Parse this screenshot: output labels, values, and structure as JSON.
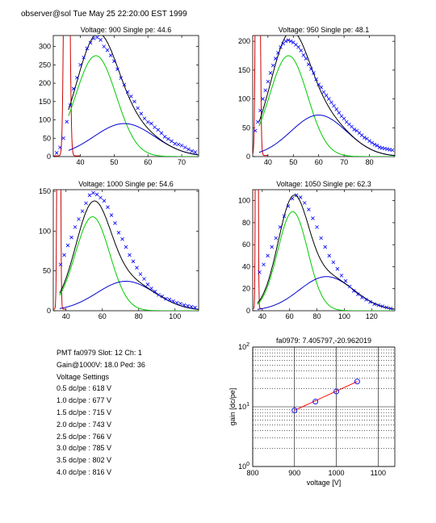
{
  "header": "observer@sol  Tue May 25 22:20:00 EST 1999",
  "colors": {
    "data": "#0000ff",
    "fit_total": "#000000",
    "fit_main": "#00cc00",
    "fit_tail": "#0000cc",
    "pedestal": "#cc0000",
    "gain_line": "#ff0000",
    "gain_marker": "#0000ff"
  },
  "info": {
    "pmt_line": "PMT fa0979 Slot: 12 Ch: 1",
    "gain_line": "Gain@1000V: 18.0 Ped: 36",
    "voltage_heading": "Voltage Settings",
    "settings": [
      "0.5 dc/pe : 618 V",
      "1.0 dc/pe : 677 V",
      "1.5 dc/pe : 715 V",
      "2.0 dc/pe : 743 V",
      "2.5 dc/pe : 766 V",
      "3.0 dc/pe : 785 V",
      "3.5 dc/pe : 802 V",
      "4.0 dc/pe : 816 V"
    ]
  },
  "chart_data": [
    {
      "type": "scatter",
      "title": "Voltage: 900 Single pe: 44.6",
      "xlim": [
        32,
        75
      ],
      "ylim": [
        0,
        330
      ],
      "xticks": [
        40,
        50,
        60,
        70
      ],
      "yticks": [
        0,
        50,
        100,
        150,
        200,
        250,
        300
      ],
      "pedestal": 36,
      "pedestal_peak": 2000,
      "fit": {
        "main": {
          "amp": 275,
          "mean": 44.6,
          "sigma": 6.0
        },
        "tail": {
          "amp": 90,
          "mean": 53,
          "sigma": 9.0
        }
      },
      "series": [
        {
          "x": [
            33,
            34,
            35,
            36,
            37,
            38,
            39,
            40,
            41,
            42,
            43,
            44,
            45,
            46,
            47,
            48,
            49,
            50,
            51,
            52,
            53,
            54,
            55,
            56,
            57,
            58,
            59,
            60,
            61,
            62,
            63,
            64,
            65,
            66,
            67,
            68,
            69,
            70,
            71,
            72,
            73,
            74
          ],
          "y": [
            10,
            25,
            50,
            95,
            140,
            185,
            215,
            250,
            270,
            295,
            310,
            322,
            325,
            318,
            300,
            290,
            276,
            260,
            238,
            214,
            196,
            176,
            164,
            150,
            132,
            117,
            104,
            94,
            90,
            80,
            73,
            64,
            54,
            48,
            42,
            35,
            33,
            30,
            25,
            20,
            15,
            12
          ]
        }
      ]
    },
    {
      "type": "scatter",
      "title": "Voltage: 950 Single pe: 48.1",
      "xlim": [
        34,
        90
      ],
      "ylim": [
        0,
        210
      ],
      "xticks": [
        40,
        50,
        60,
        70,
        80
      ],
      "yticks": [
        0,
        50,
        100,
        150,
        200
      ],
      "pedestal": 36,
      "pedestal_peak": 1500,
      "fit": {
        "main": {
          "amp": 175,
          "mean": 48.1,
          "sigma": 7.5
        },
        "tail": {
          "amp": 72,
          "mean": 60,
          "sigma": 11.0
        }
      },
      "series": [
        {
          "x": [
            35,
            36,
            37,
            38,
            39,
            40,
            41,
            42,
            43,
            44,
            45,
            46,
            47,
            48,
            49,
            50,
            51,
            52,
            53,
            54,
            55,
            56,
            57,
            58,
            59,
            60,
            61,
            62,
            63,
            64,
            65,
            66,
            67,
            68,
            69,
            70,
            71,
            72,
            73,
            74,
            75,
            76,
            77,
            78,
            79,
            80,
            81,
            82,
            83,
            84,
            85,
            86,
            87,
            88,
            89
          ],
          "y": [
            45,
            60,
            80,
            100,
            115,
            130,
            145,
            158,
            170,
            180,
            190,
            196,
            200,
            202,
            200,
            198,
            194,
            190,
            184,
            176,
            170,
            160,
            152,
            145,
            134,
            125,
            120,
            112,
            106,
            100,
            94,
            88,
            82,
            76,
            70,
            66,
            60,
            56,
            52,
            47,
            45,
            41,
            37,
            33,
            31,
            27,
            24,
            21,
            19,
            16,
            15,
            14,
            13,
            12,
            11
          ]
        }
      ]
    },
    {
      "type": "scatter",
      "title": "Voltage: 1000 Single pe: 54.6",
      "xlim": [
        33,
        113
      ],
      "ylim": [
        0,
        152
      ],
      "xticks": [
        40,
        60,
        80,
        100
      ],
      "yticks": [
        0,
        50,
        100,
        150
      ],
      "pedestal": 36,
      "pedestal_peak": 1500,
      "fit": {
        "main": {
          "amp": 118,
          "mean": 54.6,
          "sigma": 9.5
        },
        "tail": {
          "amp": 37,
          "mean": 73,
          "sigma": 16.0
        }
      },
      "series": [
        {
          "x": [
            37,
            39,
            41,
            43,
            45,
            47,
            49,
            51,
            53,
            55,
            57,
            59,
            61,
            63,
            65,
            67,
            69,
            71,
            73,
            75,
            77,
            79,
            81,
            83,
            85,
            87,
            89,
            91,
            93,
            95,
            97,
            99,
            101,
            103,
            105,
            107,
            109,
            111
          ],
          "y": [
            58,
            70,
            82,
            92,
            105,
            115,
            125,
            135,
            145,
            148,
            146,
            142,
            138,
            130,
            120,
            110,
            98,
            90,
            80,
            70,
            62,
            54,
            46,
            40,
            33,
            28,
            24,
            20,
            18,
            15,
            14,
            12,
            10,
            9,
            7,
            6,
            5,
            4
          ]
        }
      ]
    },
    {
      "type": "scatter",
      "title": "Voltage: 1050 Single pe: 62.3",
      "xlim": [
        33,
        137
      ],
      "ylim": [
        0,
        110
      ],
      "xticks": [
        40,
        60,
        80,
        100,
        120
      ],
      "yticks": [
        0,
        20,
        40,
        60,
        80,
        100
      ],
      "pedestal": 36,
      "pedestal_peak": 1200,
      "fit": {
        "main": {
          "amp": 90,
          "mean": 62.3,
          "sigma": 11.0
        },
        "tail": {
          "amp": 31,
          "mean": 87,
          "sigma": 20.0
        }
      },
      "series": [
        {
          "x": [
            38,
            41,
            44,
            47,
            50,
            53,
            56,
            59,
            62,
            65,
            68,
            71,
            74,
            77,
            80,
            83,
            86,
            89,
            92,
            95,
            98,
            101,
            104,
            107,
            110,
            113,
            116,
            119,
            122,
            125,
            128,
            131,
            134
          ],
          "y": [
            35,
            42,
            50,
            58,
            66,
            76,
            86,
            95,
            102,
            105,
            103,
            98,
            92,
            84,
            76,
            66,
            58,
            50,
            44,
            38,
            32,
            27,
            22,
            18,
            15,
            12,
            10,
            8,
            6,
            5,
            4,
            3,
            2
          ]
        }
      ]
    },
    {
      "type": "scatter",
      "title": "fa0979: 7.405797,-20.962019",
      "xlabel": "voltage [V]",
      "ylabel": "gain [dc/pe]",
      "xlim": [
        800,
        1140
      ],
      "ylim": [
        1,
        100
      ],
      "yscale": "log",
      "xticks": [
        800,
        900,
        1000,
        1100
      ],
      "yticks": [
        {
          "value": 1,
          "base": "10",
          "exp": "0"
        },
        {
          "value": 10,
          "base": "10",
          "exp": "1"
        },
        {
          "value": 100,
          "base": "10",
          "exp": "2"
        }
      ],
      "grid": true,
      "series": [
        {
          "x": [
            900,
            950,
            1000,
            1050
          ],
          "y": [
            8.7,
            12.2,
            18.0,
            26.5
          ]
        }
      ],
      "fit_line": {
        "x": [
          900,
          1050
        ],
        "y": [
          8.7,
          26.5
        ]
      }
    }
  ]
}
